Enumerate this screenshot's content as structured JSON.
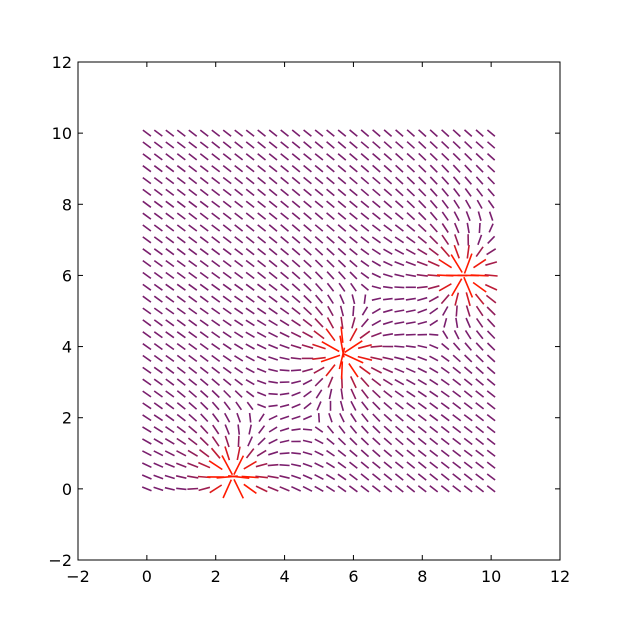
{
  "chart_data": {
    "type": "quiver",
    "title": "",
    "xlabel": "",
    "ylabel": "",
    "xlim": [
      -2,
      12
    ],
    "ylim": [
      -2,
      12
    ],
    "xticks": [
      "−2",
      "0",
      "2",
      "4",
      "6",
      "8",
      "10",
      "12"
    ],
    "yticks": [
      "−2",
      "0",
      "2",
      "4",
      "6",
      "8",
      "10",
      "12"
    ],
    "xtick_values": [
      -2,
      0,
      2,
      4,
      6,
      8,
      10,
      12
    ],
    "ytick_values": [
      -2,
      0,
      2,
      4,
      6,
      8,
      10,
      12
    ],
    "grid": false,
    "field": {
      "x_range": [
        0,
        10
      ],
      "y_range": [
        0,
        10
      ],
      "points_per_axis": 31,
      "background_angle_deg": -35,
      "radial_centers": [
        {
          "x": 2.5,
          "y": 0.35
        },
        {
          "x": 5.7,
          "y": 3.8
        },
        {
          "x": 9.2,
          "y": 6.0
        }
      ],
      "saddle_points": [
        {
          "x": 3.8,
          "y": 2.0
        },
        {
          "x": 7.7,
          "y": 4.9
        }
      ]
    },
    "colors": {
      "low": "#7a1f6e",
      "high": "#ff1a00",
      "axes": "#000000"
    }
  }
}
